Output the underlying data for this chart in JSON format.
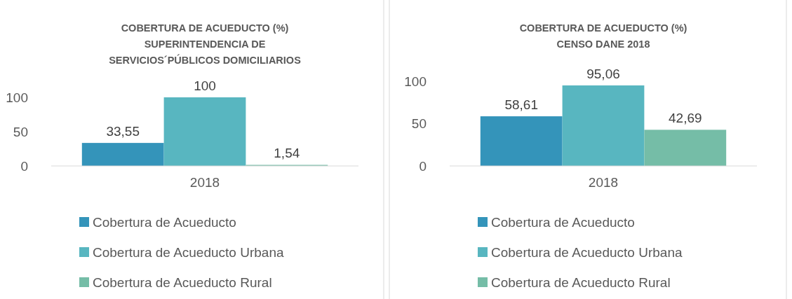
{
  "chart_data": [
    {
      "type": "bar",
      "title": "COBERTURA DE ACUEDUCTO (%)\nSUPERINTENDENCIA DE\nSERVICIOS´PÚBLICOS DOMICILIARIOS",
      "categories": [
        "2018"
      ],
      "ylim": [
        0,
        100
      ],
      "yticks": [
        0,
        50,
        100
      ],
      "legend": "bottom",
      "series": [
        {
          "name": "Cobertura de Acueducto",
          "color": "#3494ba",
          "values": [
            33.55
          ],
          "value_labels": [
            "33,55"
          ]
        },
        {
          "name": "Cobertura de Acueducto Urbana",
          "color": "#58b6c0",
          "values": [
            100
          ],
          "value_labels": [
            "100"
          ]
        },
        {
          "name": "Cobertura de Acueducto Rural",
          "color": "#75bda7",
          "values": [
            1.54
          ],
          "value_labels": [
            "1,54"
          ]
        }
      ]
    },
    {
      "type": "bar",
      "title": "COBERTURA DE ACUEDUCTO (%)\nCENSO DANE 2018",
      "categories": [
        "2018"
      ],
      "ylim": [
        0,
        100
      ],
      "yticks": [
        0,
        50,
        100
      ],
      "legend": "bottom",
      "series": [
        {
          "name": "Cobertura de Acueducto",
          "color": "#3494ba",
          "values": [
            58.61
          ],
          "value_labels": [
            "58,61"
          ]
        },
        {
          "name": "Cobertura de Acueducto Urbana",
          "color": "#58b6c0",
          "values": [
            95.06
          ],
          "value_labels": [
            "95,06"
          ]
        },
        {
          "name": "Cobertura de Acueducto Rural",
          "color": "#75bda7",
          "values": [
            42.69
          ],
          "value_labels": [
            "42,69"
          ]
        }
      ]
    }
  ]
}
